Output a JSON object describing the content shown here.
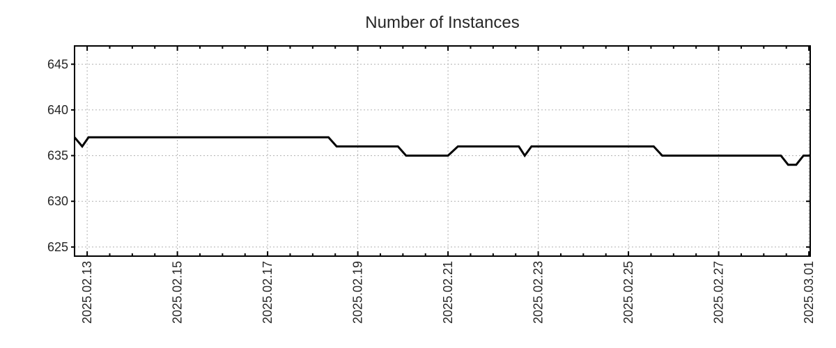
{
  "chart_data": {
    "type": "line",
    "title": "Number of Instances",
    "xlabel": "",
    "ylabel": "",
    "x_unit": "days since 2025.02.13 00:00",
    "xlim": [
      -0.28,
      16.03
    ],
    "ylim": [
      624,
      647
    ],
    "y_ticks": [
      625,
      630,
      635,
      640,
      645
    ],
    "x_major_ticks": [
      {
        "d": 0,
        "label": "2025.02.13"
      },
      {
        "d": 2,
        "label": "2025.02.15"
      },
      {
        "d": 4,
        "label": "2025.02.17"
      },
      {
        "d": 6,
        "label": "2025.02.19"
      },
      {
        "d": 8,
        "label": "2025.02.21"
      },
      {
        "d": 10,
        "label": "2025.02.23"
      },
      {
        "d": 12,
        "label": "2025.02.25"
      },
      {
        "d": 14,
        "label": "2025.02.27"
      },
      {
        "d": 16,
        "label": "2025.03.01"
      }
    ],
    "x_minor_interval": 0.5,
    "grid": true,
    "legend_position": "none",
    "series": [
      {
        "name": "instances",
        "color": "#000000",
        "points": [
          [
            -0.28,
            637
          ],
          [
            -0.11,
            636
          ],
          [
            0.03,
            637
          ],
          [
            5.35,
            637
          ],
          [
            5.53,
            636
          ],
          [
            6.89,
            636
          ],
          [
            7.07,
            635
          ],
          [
            8.0,
            635
          ],
          [
            8.22,
            636
          ],
          [
            9.57,
            636
          ],
          [
            9.7,
            635
          ],
          [
            9.85,
            636
          ],
          [
            12.56,
            636
          ],
          [
            12.75,
            635
          ],
          [
            15.38,
            635
          ],
          [
            15.54,
            634
          ],
          [
            15.72,
            634
          ],
          [
            15.88,
            635
          ],
          [
            16.03,
            635
          ]
        ]
      }
    ],
    "colors": {
      "line": "#000000",
      "grid": "#b0b0b0",
      "border": "#000000",
      "text": "#262626",
      "background": "#ffffff"
    }
  }
}
